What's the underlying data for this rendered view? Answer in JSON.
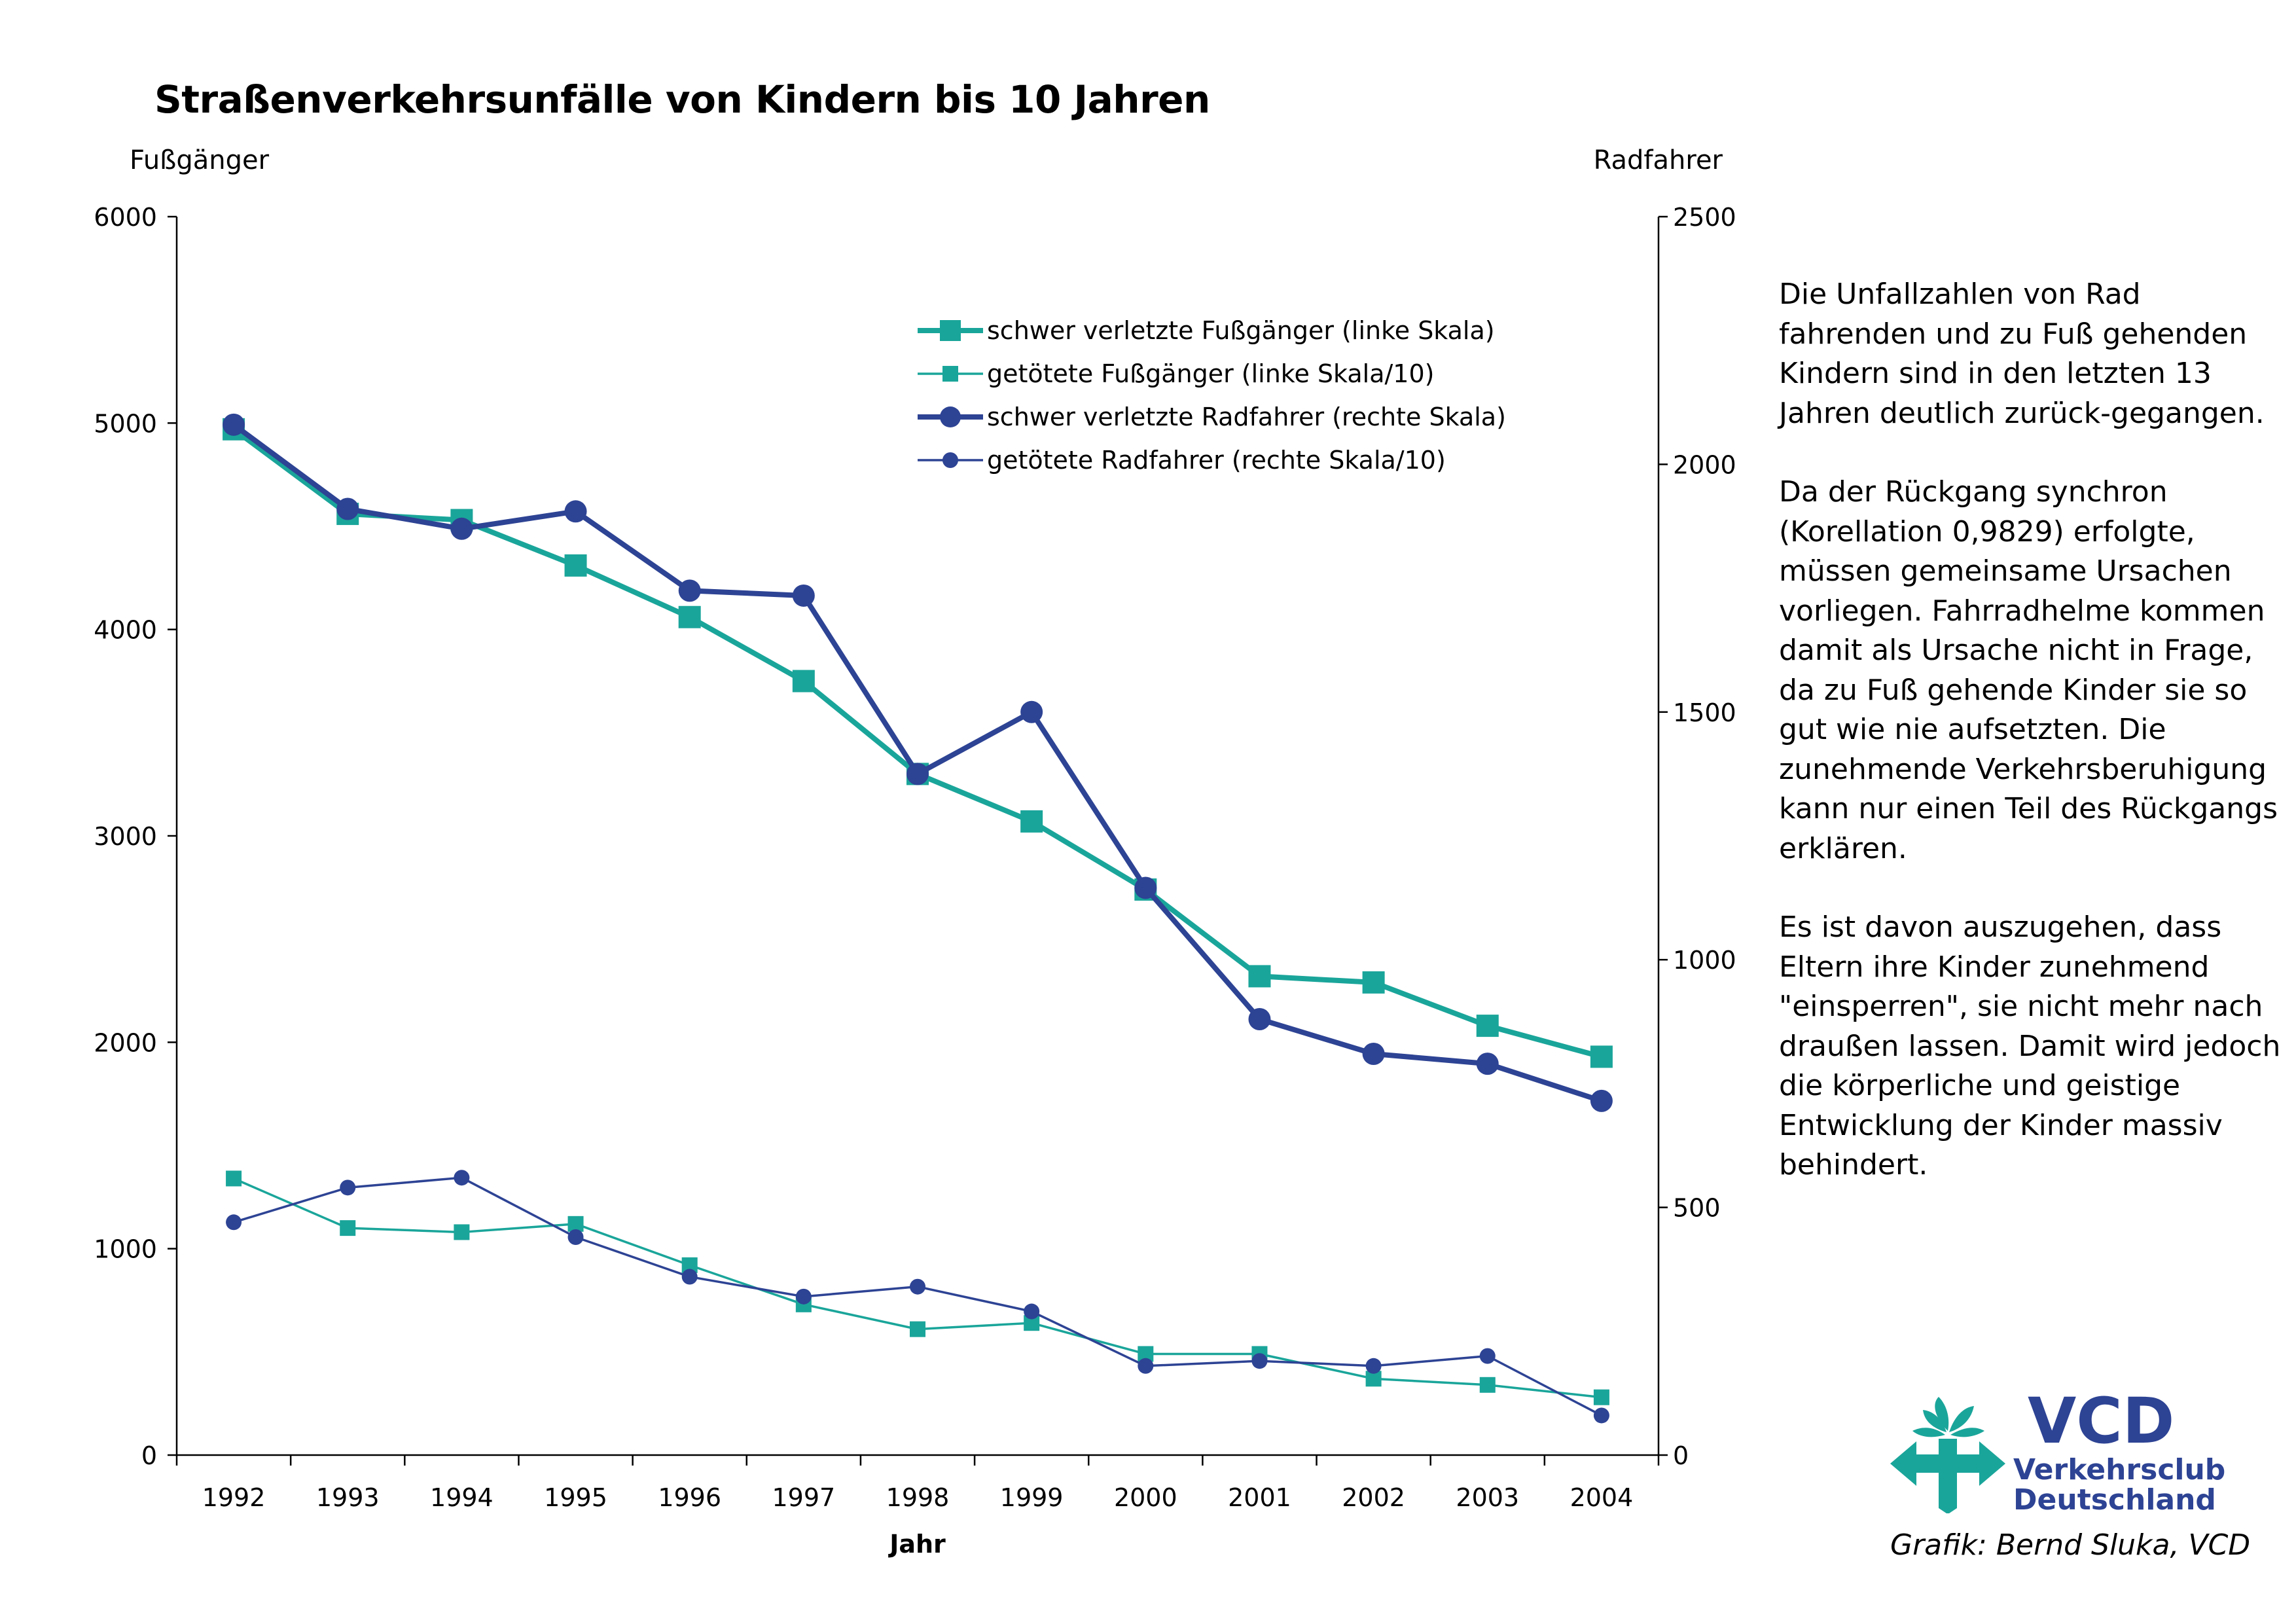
{
  "title": "Straßenverkehrsunfälle von Kindern bis 10 Jahren",
  "description": [
    "Die Unfallzahlen von Rad fahrenden und zu Fuß gehenden Kindern sind in den letzten 13 Jahren deutlich zurück-gegangen.",
    "Da der Rückgang synchron (Korellation 0,9829) erfolgte, müssen gemeinsame Ursachen vorliegen. Fahrradhelme kommen damit als Ursache nicht in Frage, da zu Fuß gehende Kinder sie so gut wie nie aufsetzten. Die zunehmende Verkehrsberuhigung kann nur einen Teil des Rückgangs erklären.",
    "Es ist davon auszugehen, dass Eltern ihre Kinder zunehmend \"einsperren\", sie nicht mehr nach draußen lassen. Damit wird jedoch die körperliche und geistige Entwicklung der Kinder massiv behindert."
  ],
  "logo": {
    "brand": "VCD",
    "line1": "Verkehrsclub",
    "line2": "Deutschland"
  },
  "credit": "Grafik: Bernd Sluka, VCD",
  "colors": {
    "teal": "#1aa59a",
    "blue": "#2d4394",
    "axis": "#000000"
  },
  "chart_data": {
    "type": "line",
    "xlabel": "Jahr",
    "ylabel_left": "Fußgänger",
    "ylabel_right": "Radfahrer",
    "ylim_left": [
      0,
      6000
    ],
    "ylim_right": [
      0,
      2500
    ],
    "yticks_left": [
      0,
      1000,
      2000,
      3000,
      4000,
      5000,
      6000
    ],
    "yticks_right": [
      0,
      500,
      1000,
      1500,
      2000,
      2500
    ],
    "categories": [
      "1992",
      "1993",
      "1994",
      "1995",
      "1996",
      "1997",
      "1998",
      "1999",
      "2000",
      "2001",
      "2002",
      "2003",
      "2004"
    ],
    "grid": false,
    "legend_position": "top-right",
    "series": [
      {
        "name": "schwer verletzte Fußgänger (linke Skala)",
        "axis": "left",
        "marker": "square",
        "weight": "thick",
        "color": "#1aa59a",
        "values": [
          4970,
          4560,
          4530,
          4310,
          4060,
          3750,
          3300,
          3070,
          2740,
          2320,
          2290,
          2080,
          1930
        ]
      },
      {
        "name": "getötete Fußgänger (linke Skala/10)",
        "axis": "left",
        "marker": "square",
        "weight": "thin",
        "color": "#1aa59a",
        "values": [
          1340,
          1100,
          1080,
          1120,
          920,
          730,
          610,
          640,
          490,
          490,
          370,
          340,
          280
        ]
      },
      {
        "name": "schwer verletzte Radfahrer (rechte Skala)",
        "axis": "right",
        "marker": "circle",
        "weight": "thick",
        "color": "#2d4394",
        "values": [
          2080,
          1910,
          1870,
          1905,
          1745,
          1735,
          1375,
          1500,
          1145,
          880,
          810,
          790,
          715
        ]
      },
      {
        "name": "getötete Radfahrer (rechte Skala/10)",
        "axis": "right",
        "marker": "circle",
        "weight": "thin",
        "color": "#2d4394",
        "values": [
          470,
          540,
          560,
          440,
          360,
          320,
          340,
          290,
          180,
          190,
          180,
          200,
          80
        ]
      }
    ]
  }
}
